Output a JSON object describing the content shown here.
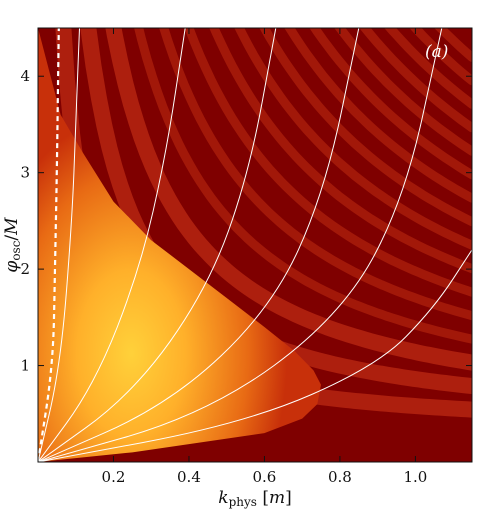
{
  "chart_data": {
    "type": "heatmap",
    "panel_label": "(a)",
    "xlabel": "k_phys [m]",
    "ylabel": "φ_osc/M",
    "xlim": [
      0,
      1.15
    ],
    "ylim": [
      0,
      4.5
    ],
    "x_ticks": [
      0.2,
      0.4,
      0.6,
      0.8,
      1.0
    ],
    "x_tick_labels": [
      "0.2",
      "0.4",
      "0.6",
      "0.8",
      "1.0"
    ],
    "y_ticks": [
      1,
      2,
      3,
      4
    ],
    "y_tick_labels": [
      "1",
      "2",
      "3",
      "4"
    ],
    "colormap": [
      "#7f0000",
      "#b01808",
      "#d84010",
      "#f07a18",
      "#ffb02a",
      "#ffd840"
    ],
    "instability_boundary": {
      "x": [
        0.0,
        0.06,
        0.12,
        0.2,
        0.3,
        0.4,
        0.5,
        0.6,
        0.68,
        0.73,
        0.75,
        0.74,
        0.7,
        0.6
      ],
      "y": [
        4.5,
        3.6,
        3.2,
        2.7,
        2.3,
        2.0,
        1.7,
        1.4,
        1.15,
        0.95,
        0.8,
        0.6,
        0.45,
        0.3
      ]
    },
    "contours": [
      {
        "style": "dashed",
        "x": [
          0.0,
          0.04,
          0.045,
          0.05,
          0.055
        ],
        "y": [
          0.0,
          1.0,
          2.0,
          3.0,
          4.5
        ]
      },
      {
        "style": "solid",
        "x": [
          0.0,
          0.06,
          0.09,
          0.1,
          0.11
        ],
        "y": [
          0.0,
          1.0,
          2.5,
          3.5,
          4.5
        ]
      },
      {
        "style": "solid",
        "x": [
          0.0,
          0.15,
          0.27,
          0.34,
          0.39
        ],
        "y": [
          0.0,
          0.8,
          2.0,
          3.2,
          4.5
        ]
      },
      {
        "style": "solid",
        "x": [
          0.0,
          0.25,
          0.45,
          0.56,
          0.63
        ],
        "y": [
          0.0,
          0.7,
          1.8,
          3.0,
          4.5
        ]
      },
      {
        "style": "solid",
        "x": [
          0.0,
          0.35,
          0.62,
          0.76,
          0.85
        ],
        "y": [
          0.0,
          0.6,
          1.6,
          2.8,
          4.5
        ]
      },
      {
        "style": "solid",
        "x": [
          0.0,
          0.45,
          0.8,
          0.97,
          1.07
        ],
        "y": [
          0.0,
          0.5,
          1.5,
          2.7,
          4.5
        ]
      },
      {
        "style": "solid",
        "x": [
          0.0,
          0.55,
          0.9,
          1.05,
          1.15
        ],
        "y": [
          0.0,
          0.4,
          1.0,
          1.6,
          2.2
        ]
      }
    ]
  }
}
